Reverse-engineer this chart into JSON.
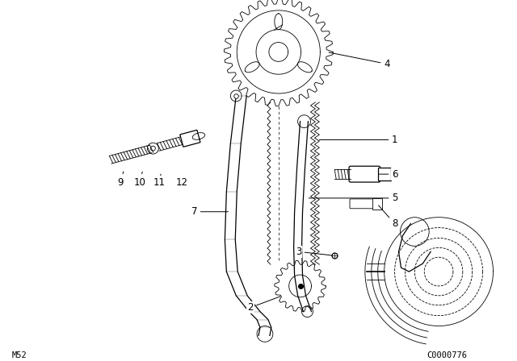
{
  "bg_color": "#ffffff",
  "line_color": "#000000",
  "fig_width": 6.4,
  "fig_height": 4.48,
  "dpi": 100,
  "label_fontsize": 8.5,
  "small_fontsize": 7.5,
  "bottom_left": "M52",
  "bottom_right": "C0000776"
}
